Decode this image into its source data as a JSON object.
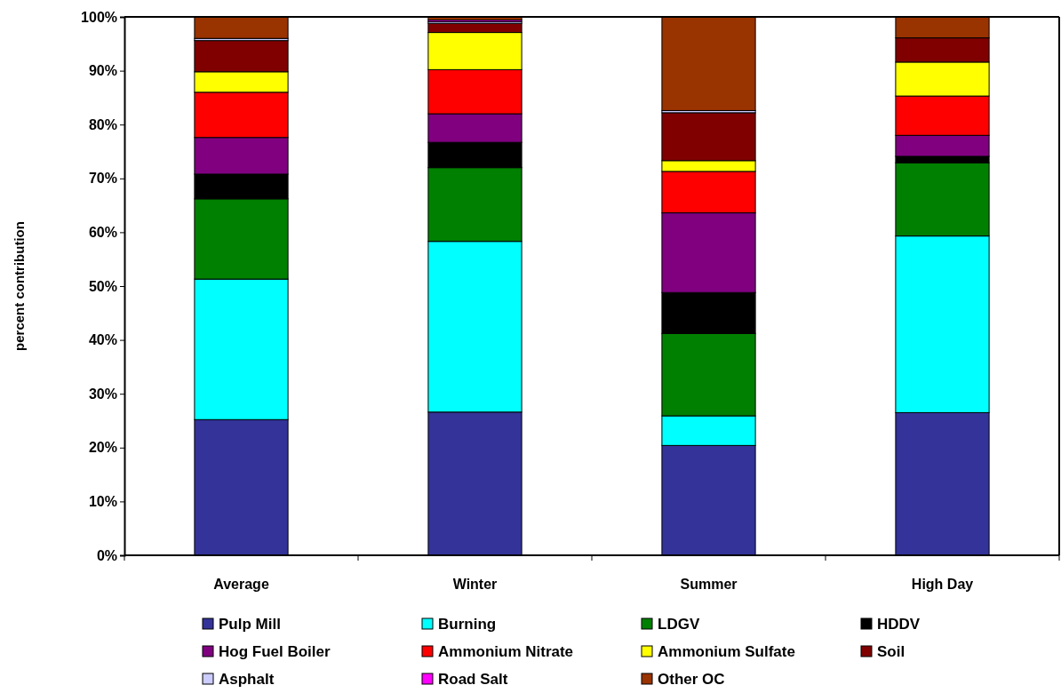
{
  "chart_data": {
    "type": "bar",
    "stacked": true,
    "ylabel": "percent contribution",
    "categories": [
      "Average",
      "Winter",
      "Summer",
      "High Day"
    ],
    "ylim": [
      0,
      100
    ],
    "yticks": [
      {
        "value": 0,
        "label": "0%"
      },
      {
        "value": 10,
        "label": "10%"
      },
      {
        "value": 20,
        "label": "20%"
      },
      {
        "value": 30,
        "label": "30%"
      },
      {
        "value": 40,
        "label": "40%"
      },
      {
        "value": 50,
        "label": "50%"
      },
      {
        "value": 60,
        "label": "60%"
      },
      {
        "value": 70,
        "label": "70%"
      },
      {
        "value": 80,
        "label": "80%"
      },
      {
        "value": 90,
        "label": "90%"
      },
      {
        "value": 100,
        "label": "100%"
      }
    ],
    "legend": "bottom",
    "grid": false,
    "series": [
      {
        "name": "Pulp Mill",
        "color": "#333399",
        "values": [
          25.2,
          26.6,
          20.4,
          26.5
        ]
      },
      {
        "name": "Burning",
        "color": "#00ffff",
        "values": [
          26.1,
          31.7,
          5.5,
          32.8
        ]
      },
      {
        "name": "LDGV",
        "color": "#008000",
        "values": [
          14.9,
          13.7,
          15.3,
          13.6
        ]
      },
      {
        "name": "HDDV",
        "color": "#000000",
        "values": [
          4.6,
          4.7,
          7.6,
          1.2
        ]
      },
      {
        "name": "Hog Fuel Boiler",
        "color": "#800080",
        "values": [
          6.8,
          5.3,
          14.8,
          3.9
        ]
      },
      {
        "name": "Ammonium Nitrate",
        "color": "#ff0000",
        "values": [
          8.4,
          8.2,
          7.7,
          7.3
        ]
      },
      {
        "name": "Ammonium Sulfate",
        "color": "#ffff00",
        "values": [
          3.8,
          6.9,
          2.0,
          6.3
        ]
      },
      {
        "name": "Soil",
        "color": "#800000",
        "values": [
          5.8,
          1.7,
          8.9,
          4.5
        ]
      },
      {
        "name": "Asphalt",
        "color": "#ccccff",
        "values": [
          0.4,
          0.3,
          0.4,
          0
        ]
      },
      {
        "name": "Road Salt",
        "color": "#ff00ff",
        "values": [
          null,
          0.3,
          0,
          0
        ]
      },
      {
        "name": "Other OC",
        "color": "#993300",
        "values": [
          4.0,
          0.6,
          17.4,
          3.9
        ]
      }
    ]
  }
}
